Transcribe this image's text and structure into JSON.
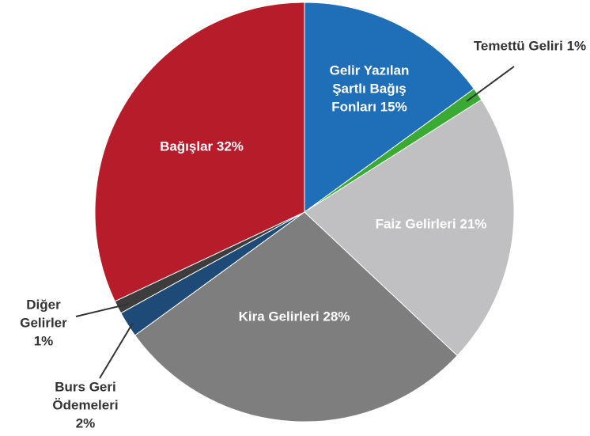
{
  "chart_data": {
    "type": "pie",
    "categories": [
      "Gelir Yazılan Şartlı Bağış Fonları",
      "Temettü Geliri",
      "Faiz Gelirleri",
      "Kira Gelirleri",
      "Burs Geri Ödemeleri",
      "Diğer Gelirler",
      "Bağışlar"
    ],
    "values": [
      15,
      1,
      21,
      28,
      2,
      1,
      32
    ],
    "value_labels": [
      "15%",
      "1%",
      "21%",
      "28%",
      "2%",
      "1%",
      "32%"
    ],
    "colors": [
      "#1f6fb8",
      "#3aaa35",
      "#c0bfc1",
      "#7e7e7e",
      "#1e4a78",
      "#3d3d3d",
      "#b71c2a"
    ]
  }
}
